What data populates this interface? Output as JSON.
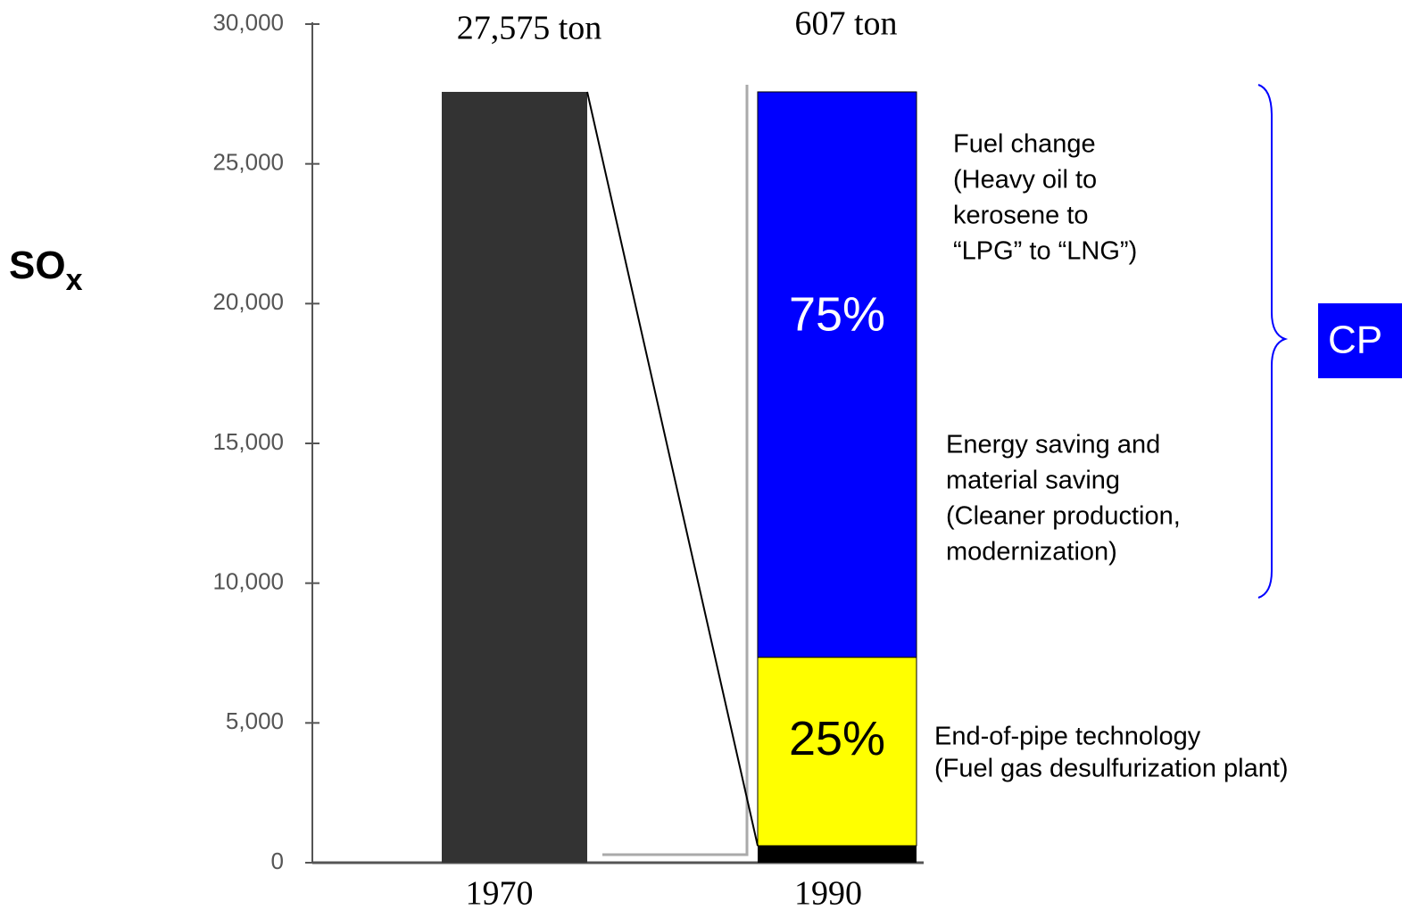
{
  "chart_data": {
    "type": "bar",
    "y_label": {
      "text": "SO",
      "subscript": "x"
    },
    "categories": [
      "1970",
      "1990"
    ],
    "values": [
      27575,
      607
    ],
    "value_labels": [
      "27,575 ton",
      "607 ton"
    ],
    "colors": [
      "#333333",
      "#000000"
    ],
    "ylim": [
      0,
      30000
    ],
    "yticks": [
      0,
      {
        "value": 5000,
        "label": "5,000"
      },
      {
        "value": 10000,
        "label": "10,000"
      },
      {
        "value": 15000,
        "label": "15,000"
      },
      {
        "value": 20000,
        "label": "20,000"
      },
      {
        "value": 25000,
        "label": "25,000"
      },
      {
        "value": 30000,
        "label": "30,000"
      }
    ],
    "reduction_breakdown": {
      "values": [
        25,
        75
      ],
      "value_labels": [
        "25%",
        "75%"
      ],
      "colors": [
        "#ffff00",
        "#0000ff"
      ],
      "label_colors": [
        "#000000",
        "#ffffff"
      ]
    },
    "annotations": [
      [
        "End-of-pipe technology",
        "(Fuel gas desulfurization plant)"
      ],
      [
        "Energy saving and",
        "material saving",
        "(Cleaner production,",
        "modernization)"
      ],
      [
        "Fuel change",
        "(Heavy oil to",
        "kerosene to",
        "“LPG” to “LNG”)"
      ]
    ],
    "bracket_label": "CP"
  }
}
